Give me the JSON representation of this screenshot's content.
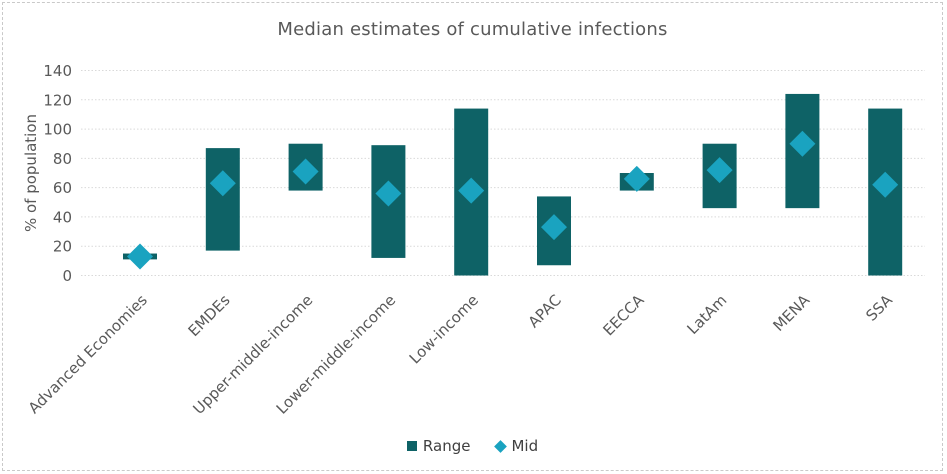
{
  "chart_data": {
    "type": "bar",
    "subtype": "floating-range-bar-with-mid-markers",
    "title": "Median estimates of cumulative infections",
    "xlabel": "",
    "ylabel": "% of population",
    "ylim": [
      0,
      140
    ],
    "ytick_step": 20,
    "ytick_labels": [
      "0",
      "20",
      "40",
      "60",
      "80",
      "100",
      "120",
      "140"
    ],
    "grid": true,
    "categories": [
      "Advanced Economies",
      "EMDEs",
      "Upper-middle-income",
      "Lower-middle-income",
      "Low-income",
      "APAC",
      "EECCA",
      "LatAm",
      "MENA",
      "SSA"
    ],
    "series": [
      {
        "name": "Range",
        "marker": "bar",
        "low": [
          11,
          17,
          58,
          12,
          0,
          7,
          58,
          46,
          46,
          0
        ],
        "high": [
          15,
          87,
          90,
          89,
          114,
          54,
          70,
          90,
          124,
          114
        ]
      },
      {
        "name": "Mid",
        "marker": "diamond",
        "values": [
          13,
          63,
          71,
          56,
          58,
          33,
          66,
          72,
          90,
          62
        ]
      }
    ],
    "legend": {
      "position": "bottom",
      "items": [
        {
          "label": "Range",
          "marker": "square",
          "color": "#0e6266"
        },
        {
          "label": "Mid",
          "marker": "diamond",
          "color": "#1aa3c0"
        }
      ]
    },
    "colors": {
      "range_bar": "#0e6266",
      "mid_marker": "#1aa3c0",
      "gridline": "#d9d9d9",
      "axis_text": "#595959",
      "title_text": "#595959",
      "legend_text": "#404040",
      "panel_border": "#c9c9c9"
    }
  }
}
